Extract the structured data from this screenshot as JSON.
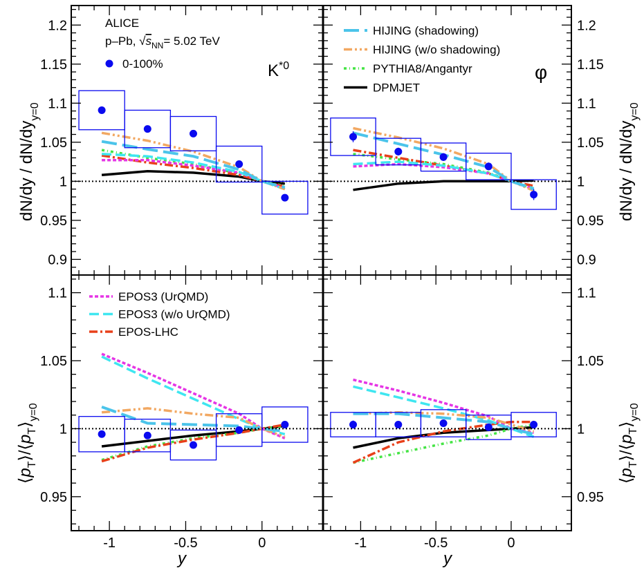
{
  "figure": {
    "experiment": "ALICE",
    "system": "p–Pb,",
    "energy_value": "= 5.02 TeV",
    "centrality": "0-100%",
    "particle_left": "K*0",
    "particle_right": "φ"
  },
  "legend_top": [
    {
      "key": "hij_s",
      "label": "HIJING (shadowing)"
    },
    {
      "key": "hij_ns",
      "label": "HIJING (w/o shadowing)"
    },
    {
      "key": "pyth",
      "label": "PYTHIA8/Angantyr"
    },
    {
      "key": "dpm",
      "label": "DPMJET"
    }
  ],
  "legend_bottom": [
    {
      "key": "epos_u",
      "label": "EPOS3 (UrQMD)"
    },
    {
      "key": "epos_nu",
      "label": "EPOS3 (w/o UrQMD)"
    },
    {
      "key": "eposlhc",
      "label": "EPOS-LHC"
    }
  ],
  "styles": {
    "hij_s": {
      "color": "#4bc4ea",
      "width": 4,
      "dash": "22,8"
    },
    "hij_ns": {
      "color": "#f2a862",
      "width": 3.5,
      "dash": "12,4,3,4,3,4"
    },
    "pyth": {
      "color": "#44e444",
      "width": 3.5,
      "dash": "4,4,1,4"
    },
    "dpm": {
      "color": "#000000",
      "width": 3.5,
      "dash": ""
    },
    "epos_u": {
      "color": "#e535e5",
      "width": 3.5,
      "dash": "5,3"
    },
    "epos_nu": {
      "color": "#3fe6f0",
      "width": 3.5,
      "dash": "14,6"
    },
    "eposlhc": {
      "color": "#e8401a",
      "width": 3.5,
      "dash": "12,4,3,4"
    },
    "data": {
      "color": "#0a0aef"
    }
  },
  "chart_data": [
    {
      "panel": "K*0 dN/dy ratio",
      "type": "scatter",
      "xlim": [
        -1.25,
        0.4
      ],
      "ylim": [
        0.88,
        1.225
      ],
      "ylabel": "dN/dy / dN/dy y=0",
      "yticks": [
        0.9,
        0.95,
        1,
        1.05,
        1.1,
        1.15,
        1.2
      ],
      "points": [
        {
          "x": -1.05,
          "y": 1.091,
          "err": 0.004,
          "sx": 0.15,
          "sy": 0.025
        },
        {
          "x": -0.75,
          "y": 1.067,
          "err": 0.004,
          "sx": 0.15,
          "sy": 0.024
        },
        {
          "x": -0.45,
          "y": 1.061,
          "err": 0.004,
          "sx": 0.15,
          "sy": 0.022
        },
        {
          "x": -0.15,
          "y": 1.022,
          "err": 0.003,
          "sx": 0.15,
          "sy": 0.023
        },
        {
          "x": 0.15,
          "y": 0.979,
          "err": 0.003,
          "sx": 0.15,
          "sy": 0.021
        }
      ],
      "models": {
        "hij_s": [
          [
            -1.05,
            1.051
          ],
          [
            -0.75,
            1.041
          ],
          [
            -0.45,
            1.032
          ],
          [
            -0.15,
            1.015
          ],
          [
            0,
            1.0
          ],
          [
            0.15,
            0.992
          ]
        ],
        "hij_ns": [
          [
            -1.05,
            1.062
          ],
          [
            -0.75,
            1.052
          ],
          [
            -0.45,
            1.038
          ],
          [
            -0.15,
            1.018
          ],
          [
            0,
            1.0
          ],
          [
            0.15,
            0.99
          ]
        ],
        "pyth": [
          [
            -1.05,
            1.04
          ],
          [
            -0.75,
            1.03
          ],
          [
            -0.45,
            1.022
          ],
          [
            -0.15,
            1.01
          ],
          [
            0,
            1.0
          ],
          [
            0.15,
            0.994
          ]
        ],
        "dpm": [
          [
            -1.05,
            1.008
          ],
          [
            -0.75,
            1.013
          ],
          [
            -0.45,
            1.011
          ],
          [
            -0.15,
            1.006
          ],
          [
            0,
            1.0
          ],
          [
            0.15,
            0.997
          ]
        ],
        "epos_u": [
          [
            -1.05,
            1.027
          ],
          [
            -0.75,
            1.027
          ],
          [
            -0.45,
            1.02
          ],
          [
            -0.15,
            1.011
          ],
          [
            0,
            1.0
          ],
          [
            0.15,
            0.991
          ]
        ],
        "epos_nu": [
          [
            -1.05,
            1.035
          ],
          [
            -0.75,
            1.032
          ],
          [
            -0.45,
            1.024
          ],
          [
            -0.15,
            1.012
          ],
          [
            0,
            1.0
          ],
          [
            0.15,
            0.99
          ]
        ],
        "eposlhc": [
          [
            -1.05,
            1.033
          ],
          [
            -0.75,
            1.024
          ],
          [
            -0.45,
            1.017
          ],
          [
            -0.15,
            1.008
          ],
          [
            0,
            1.0
          ],
          [
            0.15,
            0.993
          ]
        ]
      }
    },
    {
      "panel": "phi dN/dy ratio",
      "type": "scatter",
      "xlim": [
        -1.25,
        0.4
      ],
      "ylim": [
        0.88,
        1.225
      ],
      "ylabel": "dN/dy / dN/dy y=0",
      "yticks": [
        0.9,
        0.95,
        1,
        1.05,
        1.1,
        1.15,
        1.2
      ],
      "points": [
        {
          "x": -1.05,
          "y": 1.057,
          "err": 0.007,
          "sx": 0.15,
          "sy": 0.024
        },
        {
          "x": -0.75,
          "y": 1.038,
          "err": 0.005,
          "sx": 0.15,
          "sy": 0.017
        },
        {
          "x": -0.45,
          "y": 1.031,
          "err": 0.005,
          "sx": 0.15,
          "sy": 0.018
        },
        {
          "x": -0.15,
          "y": 1.019,
          "err": 0.005,
          "sx": 0.15,
          "sy": 0.017
        },
        {
          "x": 0.15,
          "y": 0.983,
          "err": 0.007,
          "sx": 0.15,
          "sy": 0.019
        }
      ],
      "models": {
        "hij_s": [
          [
            -1.05,
            1.062
          ],
          [
            -0.75,
            1.048
          ],
          [
            -0.45,
            1.034
          ],
          [
            -0.15,
            1.018
          ],
          [
            0,
            1.0
          ],
          [
            0.15,
            0.99
          ]
        ],
        "hij_ns": [
          [
            -1.05,
            1.068
          ],
          [
            -0.75,
            1.056
          ],
          [
            -0.45,
            1.042
          ],
          [
            -0.15,
            1.022
          ],
          [
            0,
            1.0
          ],
          [
            0.15,
            0.988
          ]
        ],
        "pyth": [
          [
            -1.05,
            1.035
          ],
          [
            -0.75,
            1.028
          ],
          [
            -0.45,
            1.022
          ],
          [
            -0.15,
            1.011
          ],
          [
            0,
            1.0
          ],
          [
            0.15,
            0.99
          ]
        ],
        "dpm": [
          [
            -1.05,
            0.989
          ],
          [
            -0.75,
            0.997
          ],
          [
            -0.45,
            1.0
          ],
          [
            -0.15,
            1.0
          ],
          [
            0,
            1.0
          ],
          [
            0.15,
            1.001
          ]
        ],
        "epos_u": [
          [
            -1.05,
            1.019
          ],
          [
            -0.75,
            1.022
          ],
          [
            -0.45,
            1.018
          ],
          [
            -0.15,
            1.01
          ],
          [
            0,
            1.0
          ],
          [
            0.15,
            0.99
          ]
        ],
        "epos_nu": [
          [
            -1.05,
            1.022
          ],
          [
            -0.75,
            1.025
          ],
          [
            -0.45,
            1.02
          ],
          [
            -0.15,
            1.01
          ],
          [
            0,
            1.0
          ],
          [
            0.15,
            0.991
          ]
        ],
        "eposlhc": [
          [
            -1.05,
            1.04
          ],
          [
            -0.75,
            1.03
          ],
          [
            -0.45,
            1.02
          ],
          [
            -0.15,
            1.01
          ],
          [
            0,
            1.0
          ],
          [
            0.15,
            0.994
          ]
        ]
      }
    },
    {
      "panel": "K*0 mean pT ratio",
      "type": "scatter",
      "xlim": [
        -1.25,
        0.4
      ],
      "ylim": [
        0.925,
        1.113
      ],
      "ylabel": "<pT>/<pT> y=0",
      "yticks": [
        0.95,
        1,
        1.05,
        1.1
      ],
      "points": [
        {
          "x": -1.05,
          "y": 0.996,
          "err": 0.002,
          "sx": 0.15,
          "sy": 0.013
        },
        {
          "x": -0.75,
          "y": 0.995,
          "err": 0.002,
          "sx": 0.15,
          "sy": 0.012
        },
        {
          "x": -0.45,
          "y": 0.988,
          "err": 0.002,
          "sx": 0.15,
          "sy": 0.011
        },
        {
          "x": -0.15,
          "y": 0.999,
          "err": 0.002,
          "sx": 0.15,
          "sy": 0.012
        },
        {
          "x": 0.15,
          "y": 1.003,
          "err": 0.002,
          "sx": 0.15,
          "sy": 0.013
        }
      ],
      "models": {
        "hij_s": [
          [
            -1.05,
            1.016
          ],
          [
            -0.75,
            1.004
          ],
          [
            -0.45,
            1.003
          ],
          [
            -0.15,
            1.002
          ],
          [
            0,
            1.0
          ],
          [
            0.15,
            0.998
          ]
        ],
        "hij_ns": [
          [
            -1.05,
            1.012
          ],
          [
            -0.75,
            1.015
          ],
          [
            -0.45,
            1.011
          ],
          [
            -0.15,
            1.008
          ],
          [
            0,
            1.0
          ],
          [
            0.15,
            0.994
          ]
        ],
        "pyth": [
          [
            -1.05,
            0.977
          ],
          [
            -0.75,
            0.987
          ],
          [
            -0.45,
            0.993
          ],
          [
            -0.15,
            0.997
          ],
          [
            0,
            1.0
          ],
          [
            0.15,
            1.002
          ]
        ],
        "dpm": [
          [
            -1.05,
            0.987
          ],
          [
            -0.75,
            0.991
          ],
          [
            -0.45,
            0.995
          ],
          [
            -0.15,
            0.998
          ],
          [
            0,
            1.0
          ],
          [
            0.15,
            1.002
          ]
        ],
        "epos_u": [
          [
            -1.05,
            1.055
          ],
          [
            -0.75,
            1.041
          ],
          [
            -0.45,
            1.026
          ],
          [
            -0.15,
            1.011
          ],
          [
            0,
            1.0
          ],
          [
            0.15,
            0.993
          ]
        ],
        "epos_nu": [
          [
            -1.05,
            1.053
          ],
          [
            -0.75,
            1.037
          ],
          [
            -0.45,
            1.022
          ],
          [
            -0.15,
            1.007
          ],
          [
            0,
            1.0
          ],
          [
            0.15,
            0.996
          ]
        ],
        "eposlhc": [
          [
            -1.05,
            0.976
          ],
          [
            -0.75,
            0.986
          ],
          [
            -0.45,
            0.992
          ],
          [
            -0.15,
            0.997
          ],
          [
            0,
            1.0
          ],
          [
            0.15,
            1.003
          ]
        ]
      }
    },
    {
      "panel": "phi mean pT ratio",
      "type": "scatter",
      "xlim": [
        -1.25,
        0.4
      ],
      "ylim": [
        0.925,
        1.113
      ],
      "ylabel": "<pT>/<pT> y=0",
      "yticks": [
        0.95,
        1,
        1.05,
        1.1
      ],
      "xlabel": "y",
      "xticks": [
        -1,
        -0.5,
        0
      ],
      "points": [
        {
          "x": -1.05,
          "y": 1.003,
          "err": 0.003,
          "sx": 0.15,
          "sy": 0.009
        },
        {
          "x": -0.75,
          "y": 1.003,
          "err": 0.002,
          "sx": 0.15,
          "sy": 0.009
        },
        {
          "x": -0.45,
          "y": 1.004,
          "err": 0.002,
          "sx": 0.15,
          "sy": 0.01
        },
        {
          "x": -0.15,
          "y": 1.001,
          "err": 0.002,
          "sx": 0.15,
          "sy": 0.009
        },
        {
          "x": 0.15,
          "y": 1.003,
          "err": 0.002,
          "sx": 0.15,
          "sy": 0.009
        }
      ],
      "models": {
        "hij_s": [
          [
            -1.05,
            1.011
          ],
          [
            -0.75,
            1.011
          ],
          [
            -0.45,
            1.008
          ],
          [
            -0.15,
            1.005
          ],
          [
            0,
            1.0
          ],
          [
            0.15,
            0.996
          ]
        ],
        "hij_ns": [
          [
            -1.05,
            1.011
          ],
          [
            -0.75,
            1.012
          ],
          [
            -0.45,
            1.011
          ],
          [
            -0.15,
            1.008
          ],
          [
            0,
            1.003
          ],
          [
            0.15,
            0.998
          ]
        ],
        "pyth": [
          [
            -1.05,
            0.975
          ],
          [
            -0.75,
            0.982
          ],
          [
            -0.45,
            0.989
          ],
          [
            -0.15,
            0.995
          ],
          [
            0,
            1.0
          ],
          [
            0.15,
            1.003
          ]
        ],
        "dpm": [
          [
            -1.05,
            0.986
          ],
          [
            -0.75,
            0.993
          ],
          [
            -0.45,
            0.997
          ],
          [
            -0.15,
            0.999
          ],
          [
            0,
            1.0
          ],
          [
            0.15,
            1.001
          ]
        ],
        "epos_u": [
          [
            -1.05,
            1.036
          ],
          [
            -0.75,
            1.028
          ],
          [
            -0.45,
            1.019
          ],
          [
            -0.15,
            1.009
          ],
          [
            0,
            1.0
          ],
          [
            0.15,
            0.997
          ]
        ],
        "epos_nu": [
          [
            -1.05,
            1.031
          ],
          [
            -0.75,
            1.023
          ],
          [
            -0.45,
            1.015
          ],
          [
            -0.15,
            1.006
          ],
          [
            0,
            1.0
          ],
          [
            0.15,
            0.994
          ]
        ],
        "eposlhc": [
          [
            -1.05,
            0.975
          ],
          [
            -0.75,
            0.99
          ],
          [
            -0.45,
            0.998
          ],
          [
            -0.15,
            1.003
          ],
          [
            0,
            1.005
          ],
          [
            0.15,
            1.005
          ]
        ]
      }
    }
  ]
}
